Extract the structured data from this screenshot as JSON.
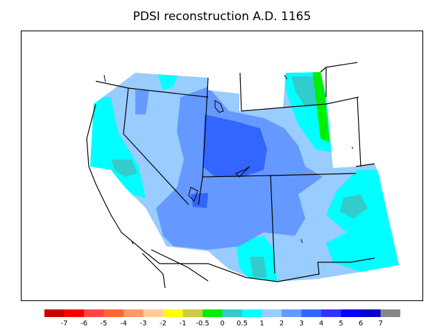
{
  "title": "PDSI reconstruction A.D. 1165",
  "legend": {
    "bins": [
      {
        "color": "#cc0000"
      },
      {
        "color": "#ff0000"
      },
      {
        "color": "#ff4444"
      },
      {
        "color": "#ff6633"
      },
      {
        "color": "#ff9966"
      },
      {
        "color": "#ffcc99"
      },
      {
        "color": "#ffff00"
      },
      {
        "color": "#cccc44"
      },
      {
        "color": "#00ee00"
      },
      {
        "color": "#33cccc"
      },
      {
        "color": "#00ffff"
      },
      {
        "color": "#99ccff"
      },
      {
        "color": "#6699ff"
      },
      {
        "color": "#3366ff"
      },
      {
        "color": "#3333ff"
      },
      {
        "color": "#0000ff"
      },
      {
        "color": "#0000cc"
      },
      {
        "color": "#888888"
      }
    ],
    "labels": [
      "-7",
      "-6",
      "-5",
      "-4",
      "-3",
      "-2",
      "-1",
      "-0.5",
      "0",
      "0.5",
      "1",
      "2",
      "3",
      "4",
      "5",
      "6",
      "7"
    ]
  },
  "palette": {
    "band_2": "#99ccff",
    "band_3": "#6699ff",
    "band_4": "#3366ff",
    "band_1": "#00ffff",
    "band_05": "#33cccc",
    "band_0": "#00ee00"
  }
}
